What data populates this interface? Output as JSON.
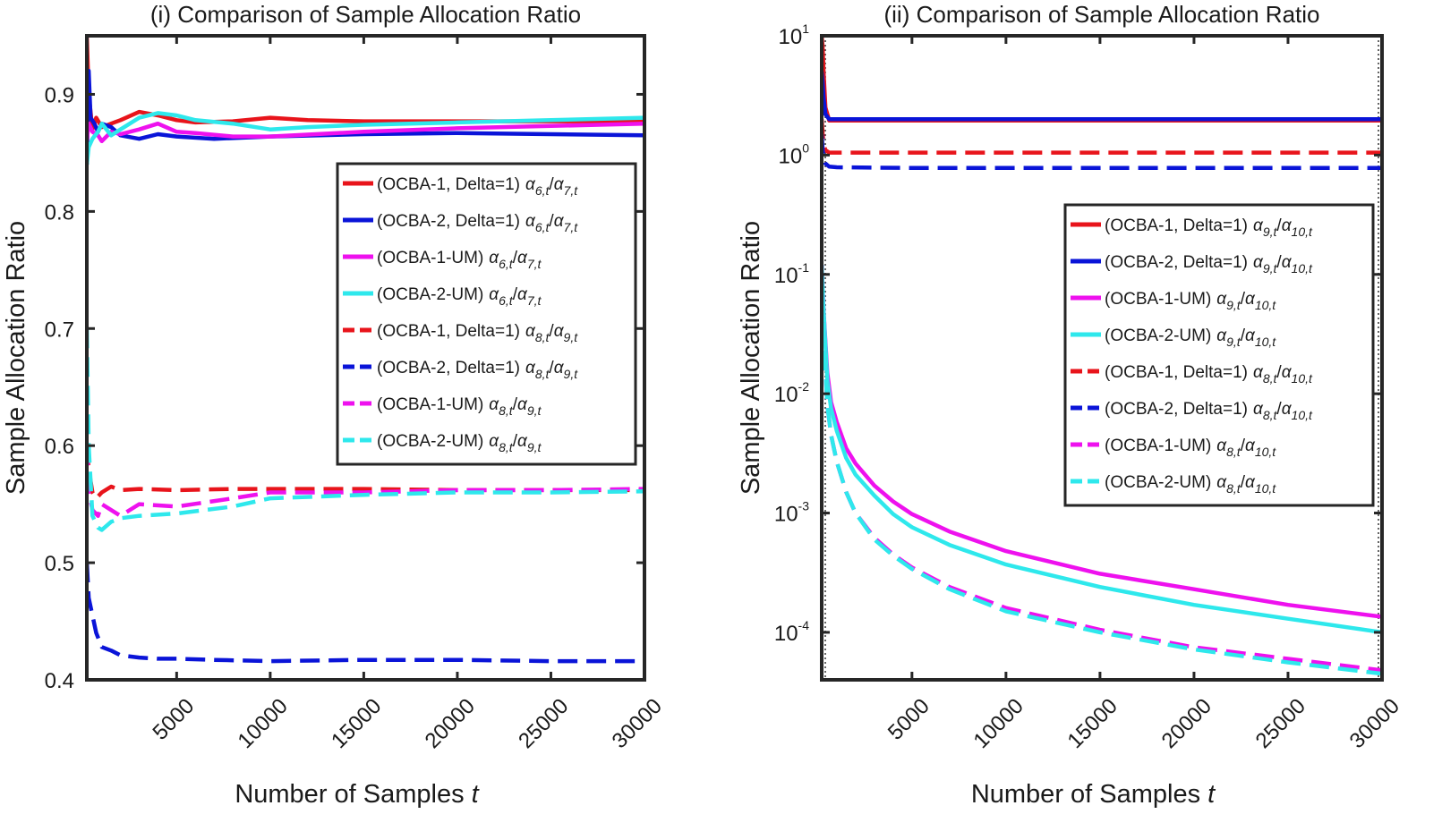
{
  "chart_data": [
    {
      "type": "line",
      "title": "(i) Comparison of Sample Allocation Ratio",
      "xlabel": "Number of Samples",
      "xlabel_var": "t",
      "ylabel": "Sample Allocation Ratio",
      "xlim": [
        200,
        30000
      ],
      "ylim": [
        0.4,
        0.95
      ],
      "yscale": "linear",
      "xticks": [
        5000,
        10000,
        15000,
        20000,
        25000,
        30000
      ],
      "xtick_labels": [
        "5000",
        "10000",
        "15000",
        "20000",
        "25000",
        "30000"
      ],
      "yticks": [
        0.4,
        0.5,
        0.6,
        0.7,
        0.8,
        0.9
      ],
      "ytick_labels": [
        "0.4",
        "0.5",
        "0.6",
        "0.7",
        "0.8",
        "0.9"
      ],
      "legend_position": "center-right",
      "series": [
        {
          "label": "(OCBA-1, Delta=1)",
          "sub_a": "6,t",
          "sub_b": "7,t",
          "color": "#e8141b",
          "dash": "solid",
          "x": [
            200,
            300,
            500,
            700,
            1000,
            1500,
            2000,
            3000,
            4000,
            5000,
            6000,
            8000,
            10000,
            12000,
            15000,
            20000,
            25000,
            30000
          ],
          "y": [
            0.95,
            0.9,
            0.87,
            0.88,
            0.872,
            0.875,
            0.878,
            0.885,
            0.882,
            0.878,
            0.876,
            0.877,
            0.88,
            0.878,
            0.877,
            0.877,
            0.877,
            0.877
          ]
        },
        {
          "label": "(OCBA-2, Delta=1)",
          "sub_a": "6,t",
          "sub_b": "7,t",
          "color": "#0a14d8",
          "dash": "solid",
          "x": [
            200,
            300,
            400,
            600,
            800,
            1000,
            1500,
            2000,
            3000,
            4000,
            5000,
            7000,
            10000,
            15000,
            20000,
            25000,
            30000
          ],
          "y": [
            0.84,
            0.92,
            0.88,
            0.875,
            0.868,
            0.875,
            0.872,
            0.865,
            0.862,
            0.866,
            0.864,
            0.862,
            0.864,
            0.866,
            0.867,
            0.866,
            0.865
          ]
        },
        {
          "label": "(OCBA-1-UM)",
          "sub_a": "6,t",
          "sub_b": "7,t",
          "color": "#ee11ee",
          "dash": "solid",
          "x": [
            200,
            300,
            500,
            800,
            1000,
            1500,
            2000,
            3000,
            4000,
            5000,
            6000,
            8000,
            10000,
            15000,
            20000,
            25000,
            30000
          ],
          "y": [
            0.86,
            0.875,
            0.868,
            0.865,
            0.86,
            0.868,
            0.866,
            0.87,
            0.875,
            0.868,
            0.867,
            0.864,
            0.864,
            0.868,
            0.871,
            0.873,
            0.875
          ]
        },
        {
          "label": "(OCBA-2-UM)",
          "sub_a": "6,t",
          "sub_b": "7,t",
          "color": "#2ee8ec",
          "dash": "solid",
          "x": [
            200,
            300,
            500,
            800,
            1000,
            1500,
            2000,
            3000,
            4000,
            5000,
            6000,
            8000,
            10000,
            12000,
            15000,
            20000,
            25000,
            30000
          ],
          "y": [
            0.84,
            0.855,
            0.862,
            0.868,
            0.875,
            0.865,
            0.87,
            0.88,
            0.884,
            0.882,
            0.878,
            0.875,
            0.87,
            0.872,
            0.874,
            0.876,
            0.878,
            0.88
          ]
        },
        {
          "label": "(OCBA-1, Delta=1)",
          "sub_a": "8,t",
          "sub_b": "9,t",
          "color": "#e8141b",
          "dash": "dashed",
          "x": [
            200,
            300,
            500,
            700,
            1000,
            1500,
            2000,
            3000,
            5000,
            8000,
            10000,
            15000,
            20000,
            25000,
            30000
          ],
          "y": [
            0.6,
            0.58,
            0.56,
            0.555,
            0.56,
            0.565,
            0.562,
            0.563,
            0.562,
            0.563,
            0.563,
            0.563,
            0.562,
            0.562,
            0.562
          ]
        },
        {
          "label": "(OCBA-2, Delta=1)",
          "sub_a": "8,t",
          "sub_b": "9,t",
          "color": "#0a14d8",
          "dash": "dashed",
          "x": [
            200,
            300,
            500,
            700,
            1000,
            1500,
            2000,
            3000,
            4000,
            5000,
            7000,
            10000,
            15000,
            20000,
            25000,
            30000
          ],
          "y": [
            0.5,
            0.47,
            0.455,
            0.44,
            0.428,
            0.425,
            0.421,
            0.419,
            0.418,
            0.418,
            0.417,
            0.416,
            0.417,
            0.417,
            0.416,
            0.416
          ]
        },
        {
          "label": "(OCBA-1-UM)",
          "sub_a": "8,t",
          "sub_b": "9,t",
          "color": "#ee11ee",
          "dash": "dashed",
          "x": [
            200,
            300,
            500,
            800,
            1000,
            1500,
            2000,
            3000,
            5000,
            8000,
            10000,
            15000,
            20000,
            25000,
            30000
          ],
          "y": [
            0.6,
            0.56,
            0.545,
            0.54,
            0.55,
            0.545,
            0.54,
            0.55,
            0.548,
            0.555,
            0.56,
            0.56,
            0.562,
            0.562,
            0.563
          ]
        },
        {
          "label": "(OCBA-2-UM)",
          "sub_a": "8,t",
          "sub_b": "9,t",
          "color": "#2ee8ec",
          "dash": "dashed",
          "x": [
            200,
            300,
            500,
            800,
            1000,
            1500,
            2000,
            3000,
            5000,
            8000,
            10000,
            15000,
            20000,
            25000,
            30000
          ],
          "y": [
            0.7,
            0.6,
            0.54,
            0.53,
            0.528,
            0.535,
            0.538,
            0.54,
            0.542,
            0.548,
            0.555,
            0.558,
            0.56,
            0.56,
            0.561
          ]
        }
      ]
    },
    {
      "type": "line",
      "title": "(ii) Comparison of Sample Allocation Ratio",
      "xlabel": "Number of Samples",
      "xlabel_var": "t",
      "ylabel": "Sample Allocation Ratio",
      "xlim": [
        200,
        30000
      ],
      "ylim": [
        4e-05,
        10
      ],
      "yscale": "log",
      "grid": "dotted vertical lines at plot edges",
      "xticks": [
        5000,
        10000,
        15000,
        20000,
        25000,
        30000
      ],
      "xtick_labels": [
        "5000",
        "10000",
        "15000",
        "20000",
        "25000",
        "30000"
      ],
      "yticks": [
        0.0001,
        0.001,
        0.01,
        0.1,
        1,
        10
      ],
      "ytick_base": [
        "10",
        "10",
        "10",
        "10",
        "10",
        "10"
      ],
      "ytick_exp": [
        "-4",
        "-3",
        "-2",
        "-1",
        "0",
        "1"
      ],
      "legend_position": "right",
      "series": [
        {
          "label": "(OCBA-1, Delta=1)",
          "sub_a": "9,t",
          "sub_b": "10,t",
          "color": "#e8141b",
          "dash": "solid",
          "x": [
            200,
            250,
            300,
            400,
            600,
            1000,
            5000,
            10000,
            20000,
            30000
          ],
          "y": [
            10,
            8,
            5,
            2.5,
            1.95,
            1.95,
            1.95,
            1.95,
            1.95,
            1.95
          ]
        },
        {
          "label": "(OCBA-2, Delta=1)",
          "sub_a": "9,t",
          "sub_b": "10,t",
          "color": "#0a14d8",
          "dash": "solid",
          "x": [
            200,
            250,
            300,
            400,
            600,
            1000,
            5000,
            10000,
            20000,
            30000
          ],
          "y": [
            5,
            4,
            3,
            2.2,
            2.0,
            2.0,
            2.0,
            2.0,
            2.0,
            2.0
          ]
        },
        {
          "label": "(OCBA-1-UM)",
          "sub_a": "9,t",
          "sub_b": "10,t",
          "color": "#ee11ee",
          "dash": "solid",
          "x": [
            200,
            300,
            500,
            700,
            1000,
            1500,
            2000,
            3000,
            4000,
            5000,
            7000,
            10000,
            15000,
            20000,
            25000,
            30000
          ],
          "y": [
            0.12,
            0.05,
            0.015,
            0.0085,
            0.0058,
            0.0035,
            0.0026,
            0.0017,
            0.00125,
            0.00098,
            0.0007,
            0.00048,
            0.00031,
            0.00023,
            0.00017,
            0.000135
          ]
        },
        {
          "label": "(OCBA-2-UM)",
          "sub_a": "9,t",
          "sub_b": "10,t",
          "color": "#2ee8ec",
          "dash": "solid",
          "x": [
            200,
            300,
            500,
            700,
            1000,
            1500,
            2000,
            3000,
            4000,
            5000,
            7000,
            10000,
            15000,
            20000,
            25000,
            30000
          ],
          "y": [
            0.12,
            0.05,
            0.013,
            0.0075,
            0.0049,
            0.0029,
            0.0021,
            0.0014,
            0.00098,
            0.00076,
            0.00054,
            0.00037,
            0.00024,
            0.00017,
            0.00013,
            0.0001
          ]
        },
        {
          "label": "(OCBA-1, Delta=1)",
          "sub_a": "8,t",
          "sub_b": "10,t",
          "color": "#e8141b",
          "dash": "dashed",
          "x": [
            200,
            250,
            300,
            400,
            600,
            1000,
            5000,
            10000,
            20000,
            30000
          ],
          "y": [
            2.0,
            1.5,
            1.25,
            1.1,
            1.05,
            1.05,
            1.05,
            1.05,
            1.05,
            1.05
          ]
        },
        {
          "label": "(OCBA-2, Delta=1)",
          "sub_a": "8,t",
          "sub_b": "10,t",
          "color": "#0a14d8",
          "dash": "dashed",
          "x": [
            200,
            250,
            300,
            400,
            600,
            1000,
            5000,
            10000,
            20000,
            30000
          ],
          "y": [
            1.5,
            1.1,
            0.95,
            0.85,
            0.8,
            0.79,
            0.78,
            0.78,
            0.78,
            0.78
          ]
        },
        {
          "label": "(OCBA-1-UM)",
          "sub_a": "8,t",
          "sub_b": "10,t",
          "color": "#ee11ee",
          "dash": "dashed",
          "x": [
            200,
            300,
            500,
            700,
            1000,
            1500,
            2000,
            3000,
            4000,
            5000,
            7000,
            10000,
            15000,
            20000,
            25000,
            30000
          ],
          "y": [
            0.12,
            0.03,
            0.008,
            0.0045,
            0.0027,
            0.0015,
            0.001,
            0.00062,
            0.00045,
            0.00035,
            0.00024,
            0.00016,
            0.000105,
            7.5e-05,
            6e-05,
            4.8e-05
          ]
        },
        {
          "label": "(OCBA-2-UM)",
          "sub_a": "8,t",
          "sub_b": "10,t",
          "color": "#2ee8ec",
          "dash": "dashed",
          "x": [
            200,
            300,
            500,
            700,
            1000,
            1500,
            2000,
            3000,
            4000,
            5000,
            7000,
            10000,
            15000,
            20000,
            25000,
            30000
          ],
          "y": [
            0.12,
            0.03,
            0.008,
            0.0045,
            0.0027,
            0.0015,
            0.001,
            0.0006,
            0.00044,
            0.00034,
            0.00023,
            0.00015,
            0.0001,
            7.2e-05,
            5.6e-05,
            4.5e-05
          ]
        }
      ]
    }
  ]
}
